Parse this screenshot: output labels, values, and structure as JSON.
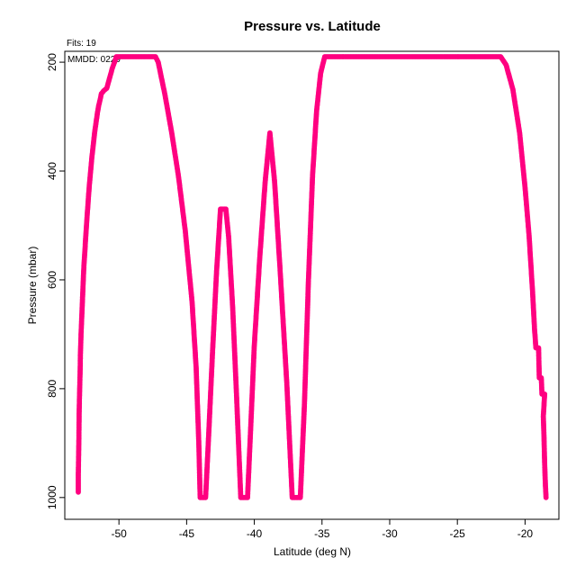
{
  "header": {
    "title": "Pressure vs. Latitude",
    "fits_note": "Fits: 19",
    "date_note": "MMDD: 0229"
  },
  "chart_data": {
    "type": "scatter",
    "title": "Pressure vs. Latitude",
    "xlabel": "Latitude (deg N)",
    "ylabel": "Pressure (mbar)",
    "xlim": [
      -54,
      -17.5
    ],
    "ylim": [
      1040,
      180
    ],
    "y_inverted": true,
    "xticks": [
      -50,
      -45,
      -40,
      -35,
      -30,
      -25,
      -20
    ],
    "yticks": [
      200,
      400,
      600,
      800,
      1000
    ],
    "grid": false,
    "color": "#ff0080",
    "series": [
      {
        "points": [
          [
            -53.0,
            990
          ],
          [
            -53.0,
            955
          ],
          [
            -52.98,
            925
          ],
          [
            -52.96,
            895
          ],
          [
            -52.95,
            870
          ],
          [
            -52.94,
            845
          ],
          [
            -52.92,
            820
          ],
          [
            -52.9,
            800
          ],
          [
            -52.88,
            780
          ],
          [
            -52.86,
            760
          ],
          [
            -52.85,
            740
          ],
          [
            -52.8,
            700
          ],
          [
            -52.7,
            640
          ],
          [
            -52.6,
            580
          ],
          [
            -52.4,
            500
          ],
          [
            -52.2,
            430
          ],
          [
            -52.0,
            375
          ],
          [
            -51.8,
            330
          ],
          [
            -51.6,
            295
          ],
          [
            -51.5,
            280
          ],
          [
            -51.4,
            270
          ],
          [
            -51.3,
            258
          ],
          [
            -51.1,
            252
          ],
          [
            -50.9,
            248
          ],
          [
            -50.7,
            230
          ],
          [
            -50.5,
            212
          ],
          [
            -50.3,
            198
          ],
          [
            -50.2,
            190
          ],
          [
            -49.5,
            190
          ],
          [
            -48.5,
            190
          ],
          [
            -47.6,
            190
          ],
          [
            -47.3,
            190
          ],
          [
            -47.1,
            200
          ],
          [
            -46.6,
            260
          ],
          [
            -46.1,
            330
          ],
          [
            -45.6,
            410
          ],
          [
            -45.1,
            510
          ],
          [
            -44.6,
            640
          ],
          [
            -44.3,
            760
          ],
          [
            -44.1,
            900
          ],
          [
            -44.0,
            1000
          ],
          [
            -43.6,
            1000
          ],
          [
            -43.4,
            900
          ],
          [
            -43.1,
            740
          ],
          [
            -42.8,
            590
          ],
          [
            -42.5,
            470
          ],
          [
            -42.1,
            470
          ],
          [
            -41.9,
            520
          ],
          [
            -41.6,
            650
          ],
          [
            -41.3,
            820
          ],
          [
            -41.0,
            1000
          ],
          [
            -40.5,
            1000
          ],
          [
            -40.3,
            890
          ],
          [
            -40.0,
            720
          ],
          [
            -39.6,
            560
          ],
          [
            -39.2,
            420
          ],
          [
            -38.85,
            330
          ],
          [
            -38.5,
            420
          ],
          [
            -38.1,
            580
          ],
          [
            -37.6,
            790
          ],
          [
            -37.2,
            1000
          ],
          [
            -36.6,
            1000
          ],
          [
            -36.3,
            830
          ],
          [
            -36.0,
            600
          ],
          [
            -35.7,
            410
          ],
          [
            -35.4,
            290
          ],
          [
            -35.1,
            220
          ],
          [
            -34.8,
            190
          ],
          [
            -33.0,
            190
          ],
          [
            -30.0,
            190
          ],
          [
            -26.7,
            190
          ],
          [
            -24.0,
            190
          ],
          [
            -21.8,
            190
          ],
          [
            -21.4,
            205
          ],
          [
            -20.9,
            250
          ],
          [
            -20.4,
            330
          ],
          [
            -20.0,
            430
          ],
          [
            -19.7,
            520
          ],
          [
            -19.45,
            620
          ],
          [
            -19.3,
            690
          ],
          [
            -19.2,
            725
          ],
          [
            -19.0,
            725
          ],
          [
            -18.95,
            780
          ],
          [
            -18.8,
            780
          ],
          [
            -18.75,
            810
          ],
          [
            -18.55,
            810
          ],
          [
            -18.65,
            850
          ],
          [
            -18.6,
            890
          ],
          [
            -18.55,
            940
          ],
          [
            -18.5,
            975
          ],
          [
            -18.45,
            1000
          ]
        ]
      }
    ]
  }
}
